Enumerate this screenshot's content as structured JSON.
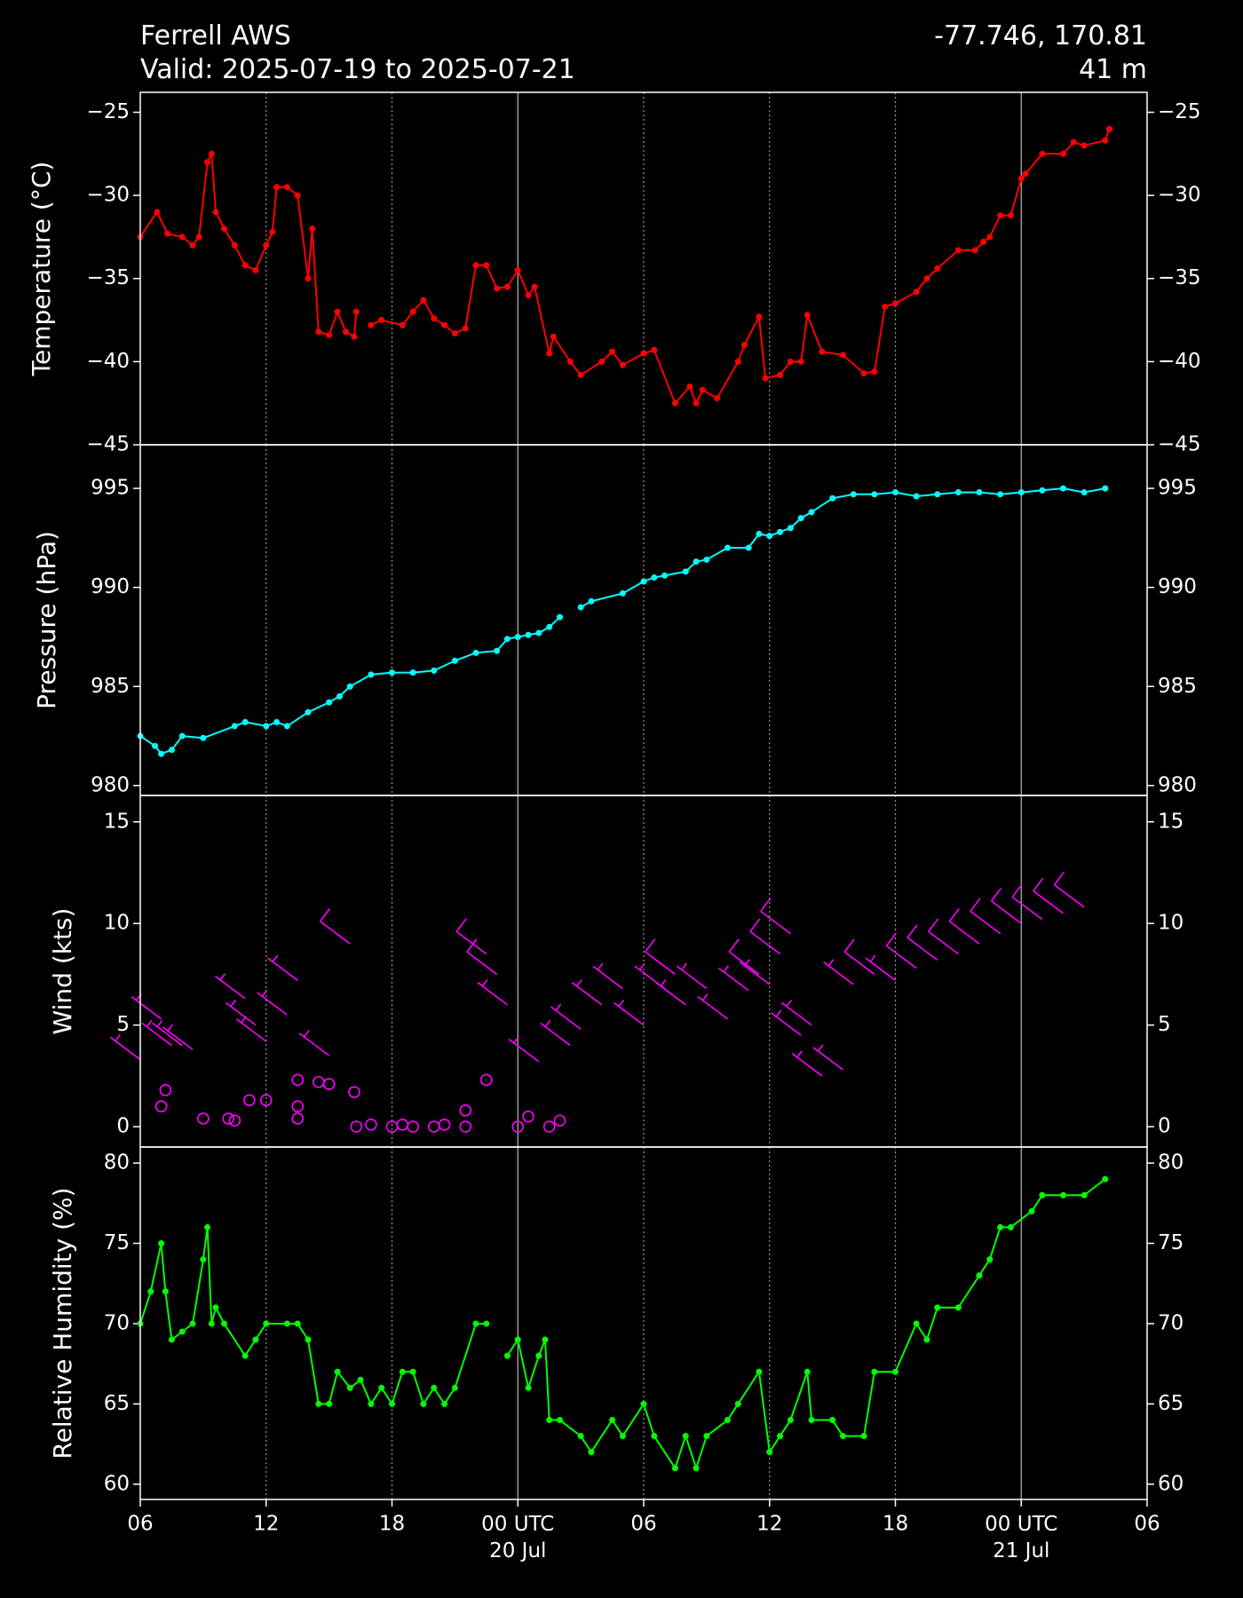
{
  "header": {
    "title": "Ferrell AWS",
    "subtitle": "Valid: 2025-07-19 to 2025-07-21",
    "location": "-77.746, 170.81",
    "elevation": "41 m"
  },
  "chart_data": [
    {
      "type": "line",
      "ylabel": "Temperature (°C)",
      "color": "#ff0000",
      "x": [
        6,
        6.8,
        7.3,
        8,
        8.5,
        8.8,
        9.2,
        9.4,
        9.6,
        10,
        10.5,
        11,
        11.5,
        12,
        12.3,
        12.5,
        13,
        13.5,
        14,
        14.2,
        14.5,
        15,
        15.4,
        15.8,
        16.2,
        16.3,
        16.6,
        17,
        17.5,
        18.5,
        19,
        19.5,
        20,
        20.5,
        21,
        21.5,
        22,
        22.5,
        23,
        23.5,
        24,
        24.5,
        24.8,
        25.5,
        25.7,
        26.5,
        27,
        28,
        28.5,
        29,
        30,
        30.5,
        31.5,
        32.2,
        32.5,
        32.8,
        33.5,
        34.5,
        34.8,
        35.5,
        35.8,
        36.5,
        37,
        37.5,
        37.8,
        38.5,
        39.5,
        40.5,
        41,
        41.5,
        42,
        43,
        43.5,
        44,
        45,
        45.8,
        46.2,
        46.5,
        47,
        47.5,
        48,
        48.2,
        49,
        50,
        50.5,
        51,
        52,
        52.2
      ],
      "values": [
        -32.5,
        -31,
        -32.3,
        -32.5,
        -33,
        -32.5,
        -28,
        -27.5,
        -31,
        -32,
        -33,
        -34.2,
        -34.5,
        -33,
        -32.2,
        -29.5,
        -29.5,
        -30,
        -35,
        -32,
        -38.2,
        -38.4,
        -37,
        -38.2,
        -38.5,
        -37,
        null,
        -37.8,
        -37.5,
        -37.8,
        -37,
        -36.3,
        -37.4,
        -37.8,
        -38.3,
        -38,
        -34.2,
        -34.2,
        -35.6,
        -35.5,
        -34.5,
        -36,
        -35.5,
        -39.5,
        -38.5,
        -40,
        -40.8,
        -40,
        -39.4,
        -40.2,
        -39.5,
        -39.3,
        -42.5,
        -41.5,
        -42.5,
        -41.7,
        -42.2,
        -40,
        -39,
        -37.3,
        -41,
        -40.8,
        -40,
        -40,
        -37.2,
        -39.4,
        -39.6,
        -40.7,
        -40.6,
        -36.7,
        -36.5,
        -35.8,
        -35,
        -34.4,
        -33.3,
        -33.3,
        -32.8,
        -32.5,
        -31.2,
        -31.2,
        -29,
        -28.7,
        -27.5,
        -27.5,
        -26.8,
        -27,
        -26.7,
        -26
      ],
      "ylim": [
        -45,
        -23.8
      ],
      "yticks": [
        {
          "value": -45,
          "label": "−45"
        },
        {
          "value": -40,
          "label": "−40"
        },
        {
          "value": -35,
          "label": "−35"
        },
        {
          "value": -30,
          "label": "−30"
        },
        {
          "value": -25,
          "label": "−25"
        }
      ]
    },
    {
      "type": "line",
      "ylabel": "Pressure (hPa)",
      "color": "#00ffff",
      "x": [
        6,
        6.7,
        7,
        7.5,
        8,
        9,
        10.5,
        11,
        12,
        12.5,
        13,
        14,
        15,
        15.5,
        16,
        17,
        18,
        19,
        20,
        21,
        22,
        23,
        23.5,
        24,
        24.5,
        25,
        25.5,
        26,
        26.5,
        27,
        27.5,
        29,
        30,
        30.5,
        31,
        32,
        32.5,
        33,
        34,
        35,
        35.5,
        36,
        36.5,
        37,
        37.5,
        38,
        39,
        40,
        41,
        42,
        43,
        44,
        45,
        46,
        47,
        48,
        49,
        50,
        51,
        52
      ],
      "values": [
        982.5,
        982,
        981.6,
        981.8,
        982.5,
        982.4,
        983,
        983.2,
        983,
        983.2,
        983,
        983.7,
        984.2,
        984.5,
        985,
        985.6,
        985.7,
        985.7,
        985.8,
        986.3,
        986.7,
        986.8,
        987.4,
        987.5,
        987.6,
        987.7,
        988,
        988.5,
        null,
        989,
        989.3,
        989.7,
        990.3,
        990.5,
        990.6,
        990.8,
        991.3,
        991.4,
        992,
        992,
        992.7,
        992.6,
        992.8,
        993,
        993.5,
        993.8,
        994.5,
        994.7,
        994.7,
        994.8,
        994.6,
        994.7,
        994.8,
        994.8,
        994.7,
        994.8,
        994.9,
        995,
        994.8,
        995
      ],
      "ylim": [
        979.5,
        997.2
      ],
      "yticks": [
        980,
        985,
        990,
        995
      ]
    },
    {
      "type": "barbs",
      "ylabel": "Wind (kts)",
      "color": "#ff00ff",
      "x": [
        6,
        7,
        7.5,
        8,
        8.5,
        7,
        7.2,
        9,
        10.2,
        10.5,
        11,
        11.5,
        12,
        11.2,
        12,
        13,
        13.5,
        13.5,
        13.5,
        13.5,
        14.5,
        15,
        15,
        16,
        16.2,
        16.3,
        17,
        18,
        18.5,
        19,
        20,
        20.5,
        21.5,
        21.5,
        22.5,
        23,
        23.5,
        22.5,
        24,
        24.5,
        25,
        25.5,
        26,
        26.5,
        27,
        28,
        29,
        30,
        31,
        31.5,
        32,
        33,
        34,
        35,
        35.5,
        36,
        36.5,
        37,
        37.5,
        38,
        38.5,
        39.5,
        40,
        41,
        42,
        43,
        44,
        45,
        46,
        47,
        48,
        49,
        50,
        51
      ],
      "values": [
        3.3,
        5.3,
        4,
        4,
        3.8,
        1,
        1.8,
        0.4,
        0.4,
        0.3,
        6.3,
        5,
        4.2,
        1.3,
        1.3,
        5.5,
        7.2,
        2.3,
        1,
        0.4,
        2.2,
        2.1,
        3.5,
        9,
        1.7,
        0,
        0.1,
        0,
        0.1,
        0,
        0,
        0.1,
        0.8,
        0,
        8.5,
        7.5,
        6,
        2.3,
        0,
        0.5,
        3.2,
        0,
        0.3,
        4,
        4.8,
        6,
        6.8,
        5,
        6.8,
        7.5,
        6,
        6.8,
        5.3,
        6.7,
        7.5,
        7,
        8.5,
        9.5,
        4.5,
        5,
        2.5,
        2.8,
        7,
        7.5,
        7.2,
        7.8,
        8.2,
        8.5,
        9,
        9.5,
        10,
        10.2,
        10.5,
        10.8
      ],
      "ylim": [
        -1,
        16.3
      ],
      "yticks": [
        0,
        5,
        10,
        15
      ]
    },
    {
      "type": "line",
      "ylabel": "Relative Humidity (%)",
      "color": "#00ff00",
      "x": [
        6,
        6.5,
        7,
        7.2,
        7.5,
        8,
        8.5,
        9,
        9.2,
        9.4,
        9.6,
        10,
        11,
        11.5,
        12,
        13,
        13.5,
        14,
        14.5,
        15,
        15.4,
        16,
        16.5,
        17,
        17.5,
        18,
        18.5,
        19,
        19.5,
        20,
        20.5,
        21,
        22,
        22.5,
        23,
        23.5,
        24,
        24.5,
        25,
        25.3,
        25.5,
        26,
        27,
        27.5,
        28.5,
        29,
        30,
        30.5,
        31.5,
        32,
        32.5,
        33,
        34,
        34.5,
        35.5,
        36,
        36.5,
        37,
        37.8,
        38,
        39,
        39.5,
        40.5,
        41,
        42,
        43,
        43.5,
        44,
        45,
        46,
        46.5,
        47,
        47.5,
        48.5,
        49,
        50,
        51,
        52
      ],
      "values": [
        70,
        72,
        75,
        72,
        69,
        69.5,
        70,
        74,
        76,
        70,
        71,
        70,
        68,
        69,
        70,
        70,
        70,
        69,
        65,
        65,
        67,
        66,
        66.5,
        65,
        66,
        65,
        67,
        67,
        65,
        66,
        65,
        66,
        70,
        70,
        null,
        68,
        69,
        66,
        68,
        69,
        64,
        64,
        63,
        62,
        64,
        63,
        65,
        63,
        61,
        63,
        61,
        63,
        64,
        65,
        67,
        62,
        63,
        64,
        67,
        64,
        64,
        63,
        63,
        67,
        67,
        70,
        69,
        71,
        71,
        73,
        74,
        76,
        76,
        77,
        78,
        78,
        78,
        79
      ],
      "ylim": [
        59.05,
        81
      ],
      "yticks": [
        60,
        65,
        70,
        75,
        80
      ],
      "xlim": [
        6,
        54
      ],
      "xticks": [
        {
          "value": 6,
          "label": "06"
        },
        12,
        18,
        {
          "value": 24,
          "label": "00 UTC\n20 Jul"
        },
        {
          "value": 30,
          "label": "06"
        },
        {
          "value": 36,
          "label": "12"
        },
        {
          "value": 42,
          "label": "18"
        },
        {
          "value": 48,
          "label": "00 UTC\n21 Jul"
        },
        {
          "value": 54,
          "label": "06"
        }
      ]
    }
  ]
}
